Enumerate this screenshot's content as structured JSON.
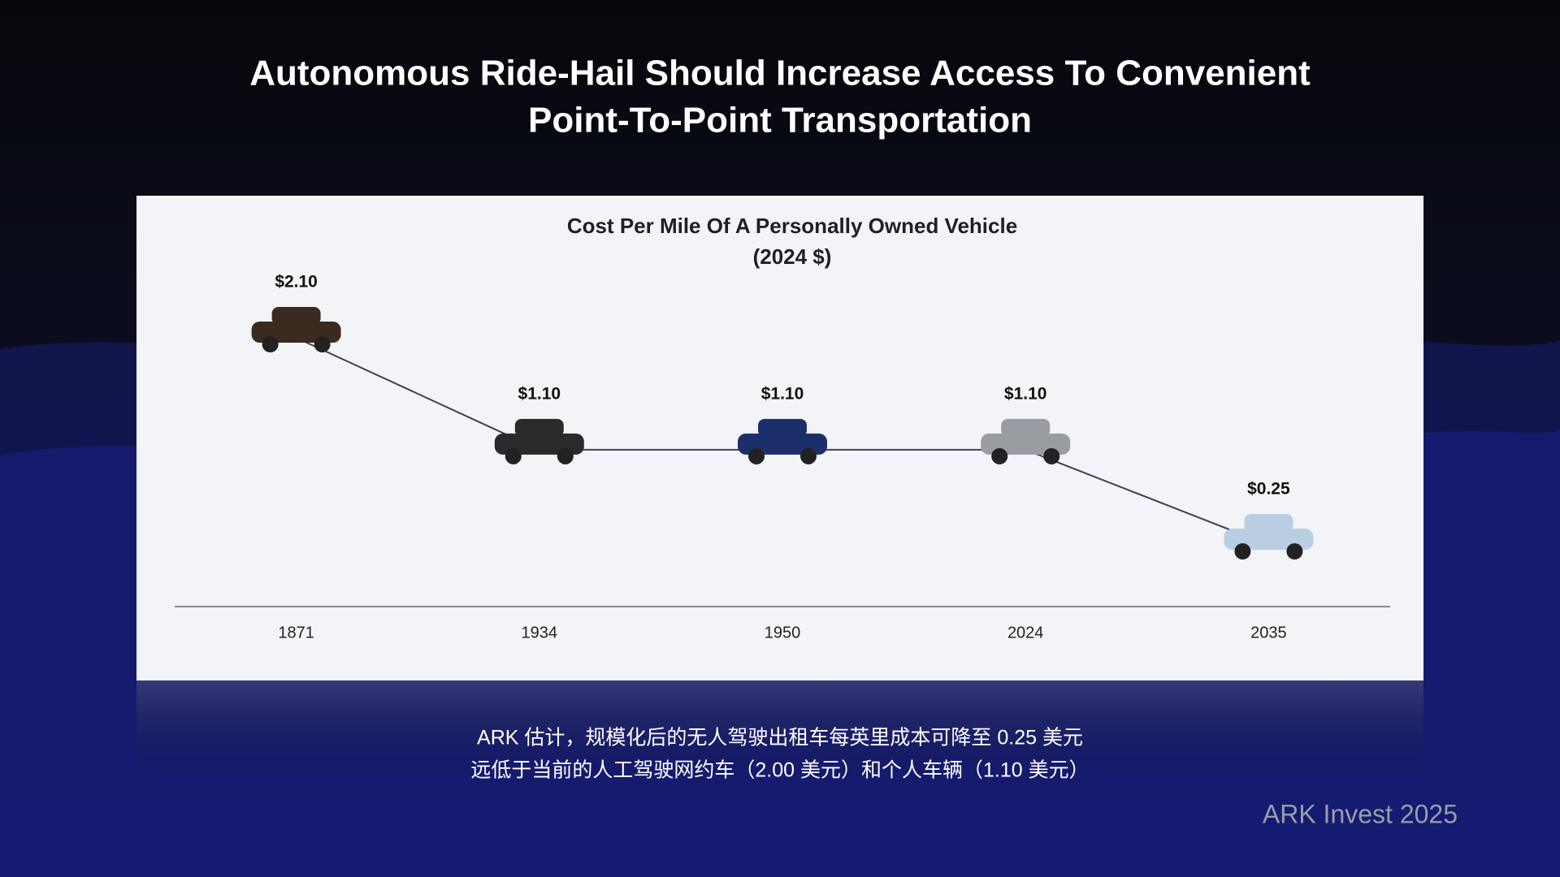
{
  "slide": {
    "title": [
      "Autonomous Ride-Hail Should Increase Access To Convenient",
      "Point-To-Point Transportation"
    ],
    "caption": [
      "ARK 估计，规模化后的无人驾驶出租车每英里成本可降至 0.25 美元",
      "远低于当前的人工驾驶网约车（2.00 美元）和个人车辆（1.10 美元）"
    ],
    "source": "ARK Invest 2025"
  },
  "chart_data": {
    "type": "line",
    "title": "Cost Per Mile Of A Personally Owned Vehicle",
    "subtitle": "(2024 $)",
    "categories": [
      "1871",
      "1934",
      "1950",
      "2024",
      "2035"
    ],
    "values": [
      2.1,
      1.1,
      1.1,
      1.1,
      0.25
    ],
    "value_labels": [
      "$2.10",
      "$1.10",
      "$1.10",
      "$1.10",
      "$0.25"
    ],
    "color": "#3a3f5c",
    "marker_colors": [
      "#3b2a20",
      "#2a2a2a",
      "#1d2f6b",
      "#9a9ca3",
      "#b9cde3"
    ]
  }
}
